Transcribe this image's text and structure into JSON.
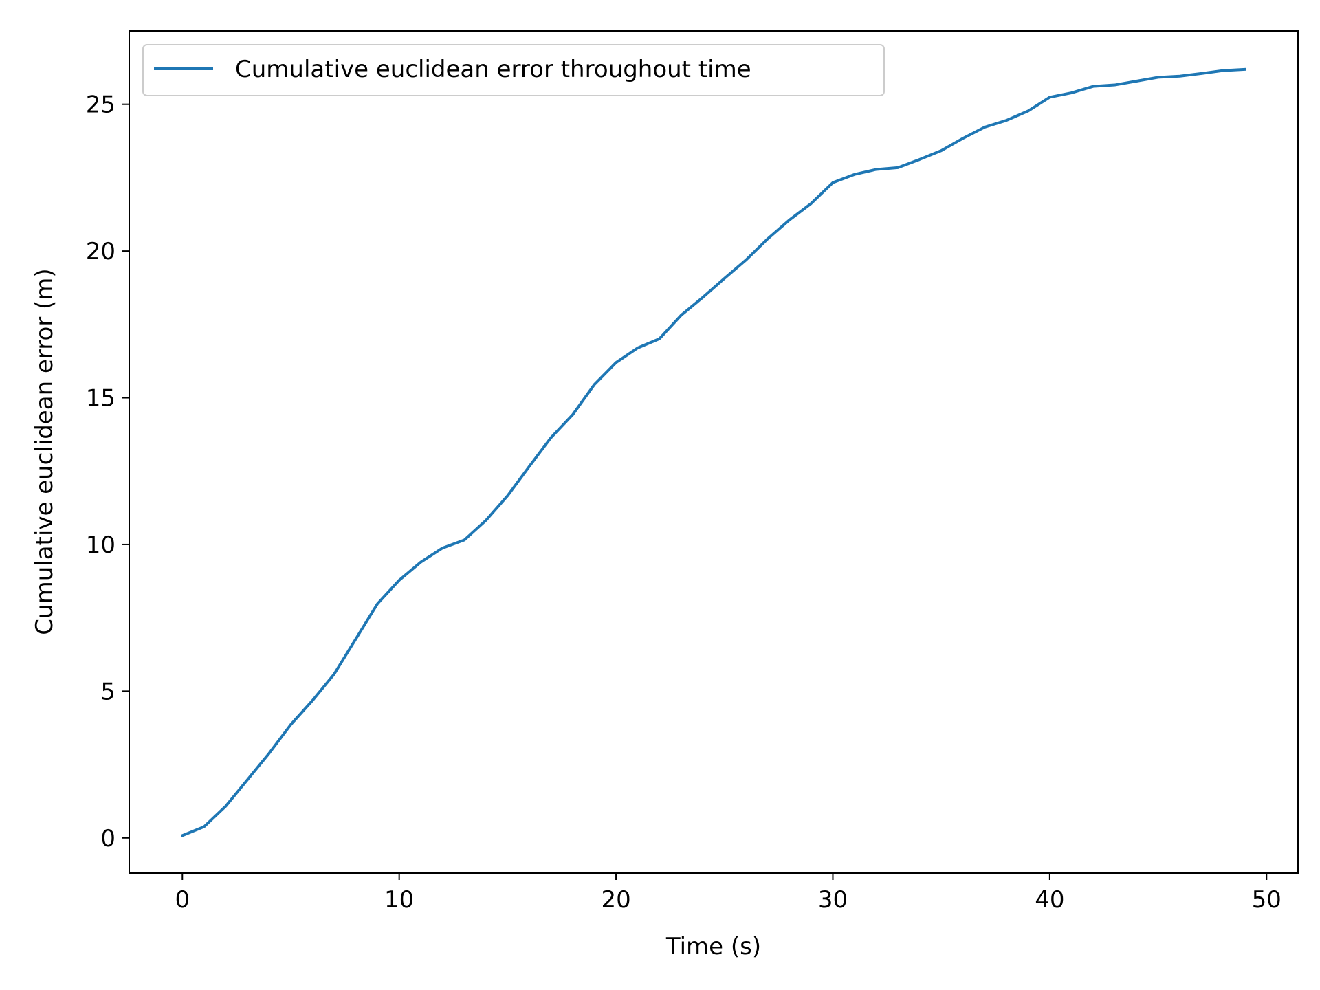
{
  "chart_data": {
    "type": "line",
    "title": "",
    "xlabel": "Time (s)",
    "ylabel": "Cumulative euclidean error (m)",
    "xlim": [
      -2.45,
      51.45
    ],
    "ylim": [
      -1.2,
      27.5
    ],
    "xticks": [
      0,
      10,
      20,
      30,
      40,
      50
    ],
    "yticks": [
      0,
      5,
      10,
      15,
      20,
      25
    ],
    "grid": false,
    "legend_position": "upper-left",
    "series": [
      {
        "name": "Cumulative euclidean error throughout time",
        "color": "#1f77b4",
        "x": [
          0,
          1,
          2,
          3,
          4,
          5,
          6,
          7,
          8,
          9,
          10,
          11,
          12,
          13,
          14,
          15,
          16,
          17,
          18,
          19,
          20,
          21,
          22,
          23,
          24,
          25,
          26,
          27,
          28,
          29,
          30,
          31,
          32,
          33,
          34,
          35,
          36,
          37,
          38,
          39,
          40,
          41,
          42,
          43,
          44,
          45,
          46,
          47,
          48,
          49
        ],
        "y": [
          0.08,
          0.38,
          1.08,
          1.98,
          2.88,
          3.86,
          4.68,
          5.58,
          6.78,
          7.98,
          8.78,
          9.4,
          9.88,
          10.15,
          10.82,
          11.66,
          12.66,
          13.64,
          14.42,
          15.45,
          16.2,
          16.7,
          17.01,
          17.81,
          18.42,
          19.07,
          19.7,
          20.42,
          21.06,
          21.62,
          22.33,
          22.61,
          22.78,
          22.84,
          23.12,
          23.42,
          23.84,
          24.22,
          24.45,
          24.77,
          25.24,
          25.39,
          25.61,
          25.66,
          25.79,
          25.92,
          25.96,
          26.05,
          26.15,
          26.19
        ]
      }
    ]
  }
}
